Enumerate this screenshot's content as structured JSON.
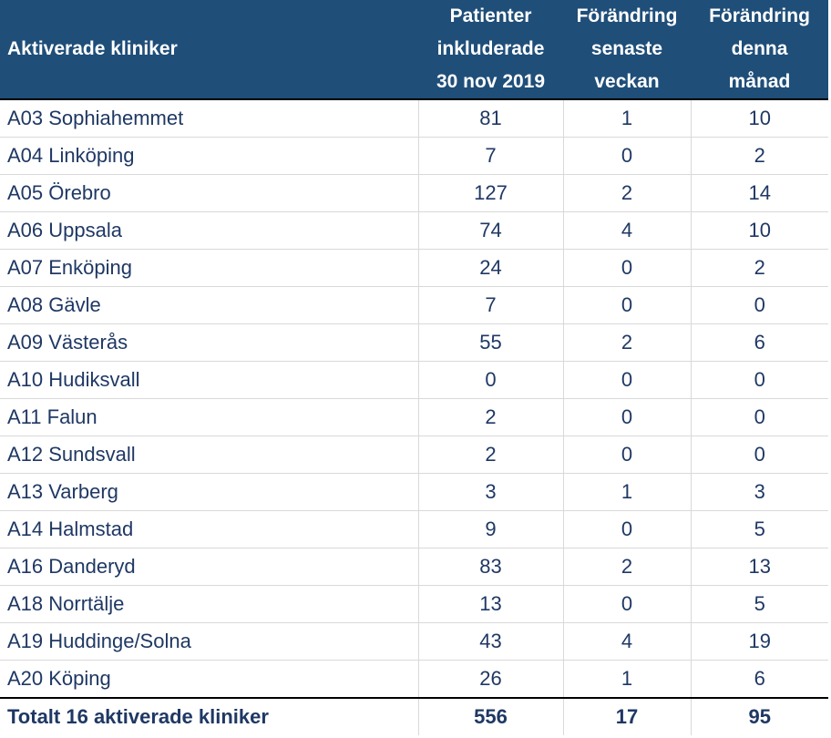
{
  "header": {
    "clinic_col": "Aktiverade kliniker",
    "patients_col": [
      "Patienter",
      "inkluderade",
      "30 nov 2019"
    ],
    "week_col": [
      "Förändring",
      "senaste",
      "veckan"
    ],
    "month_col": [
      "Förändring",
      "denna",
      "månad"
    ]
  },
  "rows": [
    {
      "clinic": "A03 Sophiahemmet",
      "patients": "81",
      "week": "1",
      "month": "10"
    },
    {
      "clinic": "A04 Linköping",
      "patients": "7",
      "week": "0",
      "month": "2"
    },
    {
      "clinic": "A05 Örebro",
      "patients": "127",
      "week": "2",
      "month": "14"
    },
    {
      "clinic": "A06 Uppsala",
      "patients": "74",
      "week": "4",
      "month": "10"
    },
    {
      "clinic": "A07 Enköping",
      "patients": "24",
      "week": "0",
      "month": "2"
    },
    {
      "clinic": "A08 Gävle",
      "patients": "7",
      "week": "0",
      "month": "0"
    },
    {
      "clinic": "A09 Västerås",
      "patients": "55",
      "week": "2",
      "month": "6"
    },
    {
      "clinic": "A10 Hudiksvall",
      "patients": "0",
      "week": "0",
      "month": "0"
    },
    {
      "clinic": "A11 Falun",
      "patients": "2",
      "week": "0",
      "month": "0"
    },
    {
      "clinic": "A12 Sundsvall",
      "patients": "2",
      "week": "0",
      "month": "0"
    },
    {
      "clinic": "A13 Varberg",
      "patients": "3",
      "week": "1",
      "month": "3"
    },
    {
      "clinic": "A14 Halmstad",
      "patients": "9",
      "week": "0",
      "month": "5"
    },
    {
      "clinic": "A16 Danderyd",
      "patients": "83",
      "week": "2",
      "month": "13"
    },
    {
      "clinic": "A18 Norrtälje",
      "patients": "13",
      "week": "0",
      "month": "5"
    },
    {
      "clinic": "A19 Huddinge/Solna",
      "patients": "43",
      "week": "4",
      "month": "19"
    },
    {
      "clinic": "A20 Köping",
      "patients": "26",
      "week": "1",
      "month": "6"
    }
  ],
  "total": {
    "clinic": "Totalt 16 aktiverade kliniker",
    "patients": "556",
    "week": "17",
    "month": "95"
  },
  "colors": {
    "header_bg": "#1f4e79",
    "header_text": "#ffffff",
    "cell_text": "#1f3864",
    "grid": "#d9d9d9"
  }
}
